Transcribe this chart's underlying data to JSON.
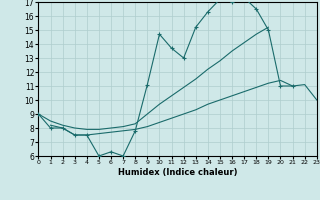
{
  "xlabel": "Humidex (Indice chaleur)",
  "xlim": [
    0,
    23
  ],
  "ylim": [
    6,
    17
  ],
  "bg_color": "#cfe8e8",
  "grid_color": "#aecece",
  "line_color": "#1a6b6b",
  "line1_x": [
    0,
    1,
    2,
    3,
    4,
    5,
    6,
    7,
    8,
    9,
    10,
    11,
    12,
    13,
    14,
    15,
    16,
    17,
    18,
    19,
    20,
    21
  ],
  "line1_y": [
    9.0,
    8.0,
    8.0,
    7.5,
    7.5,
    6.0,
    6.3,
    6.0,
    7.8,
    11.1,
    14.7,
    13.7,
    13.0,
    15.2,
    16.3,
    17.2,
    17.0,
    17.3,
    16.5,
    15.0,
    11.0,
    11.0
  ],
  "line2_x": [
    0,
    1,
    2,
    3,
    4,
    5,
    6,
    7,
    8,
    9,
    10,
    11,
    12,
    13,
    14,
    15,
    16,
    17,
    18,
    19
  ],
  "line2_y": [
    9.0,
    8.5,
    8.2,
    8.0,
    7.9,
    7.9,
    8.0,
    8.1,
    8.3,
    9.0,
    9.7,
    10.3,
    10.9,
    11.5,
    12.2,
    12.8,
    13.5,
    14.1,
    14.7,
    15.2
  ],
  "line3_x": [
    1,
    2,
    3,
    4,
    5,
    6,
    7,
    8,
    9,
    10,
    11,
    12,
    13,
    14,
    15,
    16,
    17,
    18,
    19,
    20,
    21,
    22,
    23
  ],
  "line3_y": [
    8.2,
    8.0,
    7.5,
    7.5,
    7.6,
    7.7,
    7.8,
    7.9,
    8.1,
    8.4,
    8.7,
    9.0,
    9.3,
    9.7,
    10.0,
    10.3,
    10.6,
    10.9,
    11.2,
    11.4,
    11.0,
    11.1,
    10.0
  ]
}
